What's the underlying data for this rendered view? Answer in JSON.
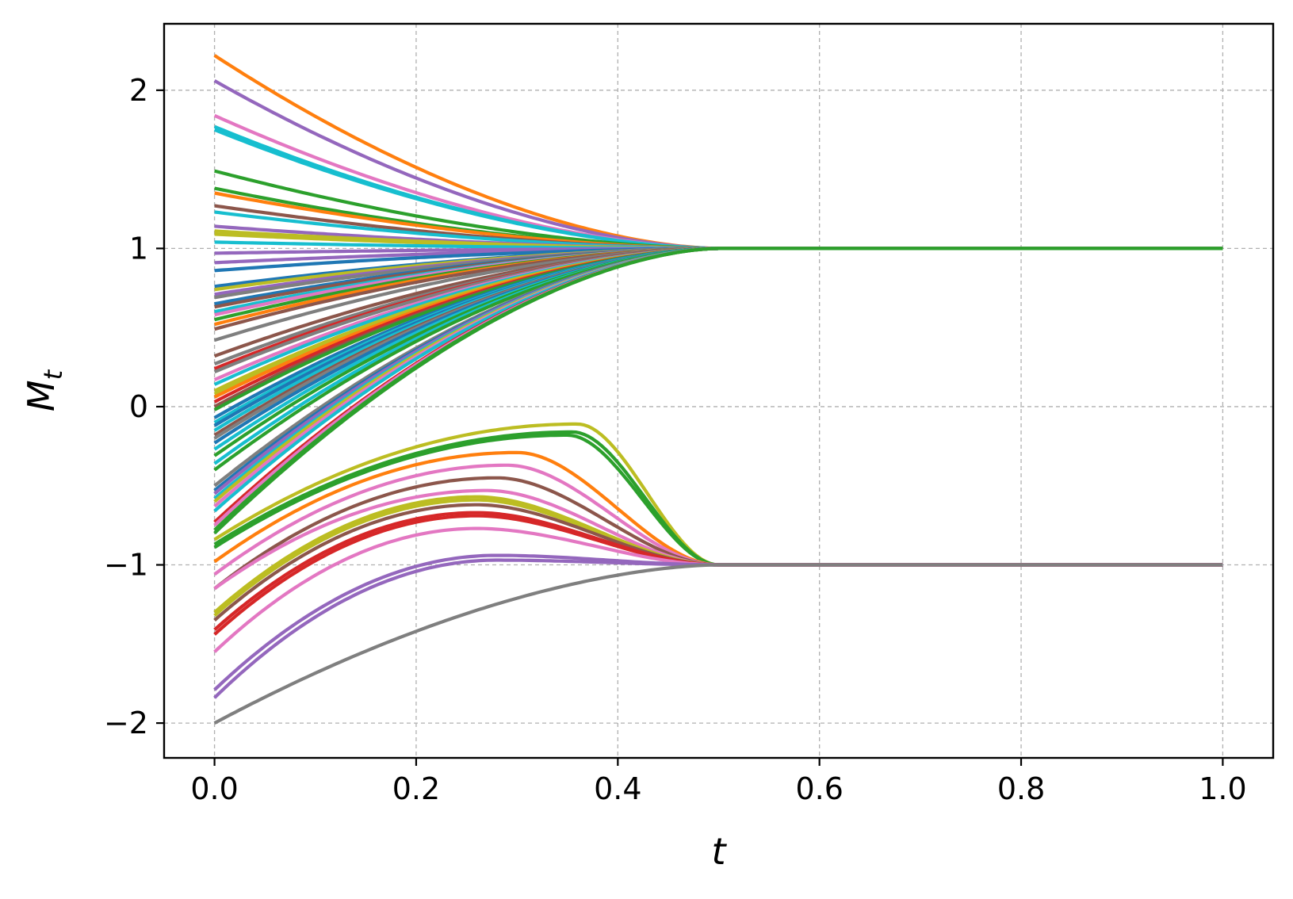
{
  "chart_data": {
    "type": "line",
    "xlabel": "t",
    "ylabel": "M",
    "ylabel_subscript": "t",
    "xlim": [
      -0.05,
      1.05
    ],
    "ylim": [
      -2.22,
      2.42
    ],
    "xticks": [
      0.0,
      0.2,
      0.4,
      0.6,
      0.8,
      1.0
    ],
    "xtick_labels": [
      "0.0",
      "0.2",
      "0.4",
      "0.6",
      "0.8",
      "1.0"
    ],
    "yticks": [
      -2,
      -1,
      0,
      1,
      2
    ],
    "ytick_labels": [
      "−2",
      "−1",
      "0",
      "1",
      "2"
    ],
    "grid": true,
    "grid_style": "dashed",
    "t_switch": 0.5,
    "colors": [
      "#1f77b4",
      "#ff7f0e",
      "#2ca02c",
      "#d62728",
      "#9467bd",
      "#8c564b",
      "#e377c2",
      "#7f7f7f",
      "#bcbd22",
      "#17becf"
    ],
    "series": [
      {
        "color": "#ff7f0e",
        "start": 2.22,
        "terminal": 1,
        "peak_t": null,
        "peak": null
      },
      {
        "color": "#9467bd",
        "start": 2.06,
        "terminal": 1,
        "peak_t": null,
        "peak": null
      },
      {
        "color": "#e377c2",
        "start": 1.84,
        "terminal": 1,
        "peak_t": null,
        "peak": null
      },
      {
        "color": "#17becf",
        "start": 1.77,
        "terminal": 1,
        "peak_t": null,
        "peak": null
      },
      {
        "color": "#17becf",
        "start": 1.75,
        "terminal": 1,
        "peak_t": null,
        "peak": null
      },
      {
        "color": "#2ca02c",
        "start": 1.49,
        "terminal": 1,
        "peak_t": null,
        "peak": null
      },
      {
        "color": "#2ca02c",
        "start": 1.38,
        "terminal": 1,
        "peak_t": null,
        "peak": null
      },
      {
        "color": "#ff7f0e",
        "start": 1.35,
        "terminal": 1,
        "peak_t": null,
        "peak": null
      },
      {
        "color": "#8c564b",
        "start": 1.27,
        "terminal": 1,
        "peak_t": null,
        "peak": null
      },
      {
        "color": "#17becf",
        "start": 1.23,
        "terminal": 1,
        "peak_t": null,
        "peak": null
      },
      {
        "color": "#9467bd",
        "start": 1.14,
        "terminal": 1,
        "peak_t": null,
        "peak": null
      },
      {
        "color": "#bcbd22",
        "start": 1.11,
        "terminal": 1,
        "peak_t": null,
        "peak": null
      },
      {
        "color": "#bcbd22",
        "start": 1.09,
        "terminal": 1,
        "peak_t": null,
        "peak": null
      },
      {
        "color": "#17becf",
        "start": 1.04,
        "terminal": 1,
        "peak_t": null,
        "peak": null
      },
      {
        "color": "#9467bd",
        "start": 0.97,
        "terminal": 1,
        "peak_t": null,
        "peak": null
      },
      {
        "color": "#9467bd",
        "start": 0.91,
        "terminal": 1,
        "peak_t": null,
        "peak": null
      },
      {
        "color": "#1f77b4",
        "start": 0.86,
        "terminal": 1,
        "peak_t": null,
        "peak": null
      },
      {
        "color": "#1f77b4",
        "start": 0.76,
        "terminal": 1,
        "peak_t": null,
        "peak": null
      },
      {
        "color": "#bcbd22",
        "start": 0.74,
        "terminal": 1,
        "peak_t": null,
        "peak": null
      },
      {
        "color": "#9467bd",
        "start": 0.71,
        "terminal": 1,
        "peak_t": null,
        "peak": null
      },
      {
        "color": "#7f7f7f",
        "start": 0.69,
        "terminal": 1,
        "peak_t": null,
        "peak": null
      },
      {
        "color": "#1f77b4",
        "start": 0.65,
        "terminal": 1,
        "peak_t": null,
        "peak": null
      },
      {
        "color": "#8c564b",
        "start": 0.63,
        "terminal": 1,
        "peak_t": null,
        "peak": null
      },
      {
        "color": "#17becf",
        "start": 0.6,
        "terminal": 1,
        "peak_t": null,
        "peak": null
      },
      {
        "color": "#e377c2",
        "start": 0.58,
        "terminal": 1,
        "peak_t": null,
        "peak": null
      },
      {
        "color": "#2ca02c",
        "start": 0.55,
        "terminal": 1,
        "peak_t": null,
        "peak": null
      },
      {
        "color": "#ff7f0e",
        "start": 0.52,
        "terminal": 1,
        "peak_t": null,
        "peak": null
      },
      {
        "color": "#8c564b",
        "start": 0.49,
        "terminal": 1,
        "peak_t": null,
        "peak": null
      },
      {
        "color": "#7f7f7f",
        "start": 0.42,
        "terminal": 1,
        "peak_t": null,
        "peak": null
      },
      {
        "color": "#8c564b",
        "start": 0.32,
        "terminal": 1,
        "peak_t": null,
        "peak": null
      },
      {
        "color": "#7f7f7f",
        "start": 0.27,
        "terminal": 1,
        "peak_t": null,
        "peak": null
      },
      {
        "color": "#d62728",
        "start": 0.24,
        "terminal": 1,
        "peak_t": null,
        "peak": null
      },
      {
        "color": "#7f7f7f",
        "start": 0.22,
        "terminal": 1,
        "peak_t": null,
        "peak": null
      },
      {
        "color": "#e377c2",
        "start": 0.17,
        "terminal": 1,
        "peak_t": null,
        "peak": null
      },
      {
        "color": "#17becf",
        "start": 0.14,
        "terminal": 1,
        "peak_t": null,
        "peak": null
      },
      {
        "color": "#bcbd22",
        "start": 0.1,
        "terminal": 1,
        "peak_t": null,
        "peak": null
      },
      {
        "color": "#bcbd22",
        "start": 0.08,
        "terminal": 1,
        "peak_t": null,
        "peak": null
      },
      {
        "color": "#ff7f0e",
        "start": 0.06,
        "terminal": 1,
        "peak_t": null,
        "peak": null
      },
      {
        "color": "#d62728",
        "start": 0.03,
        "terminal": 1,
        "peak_t": null,
        "peak": null
      },
      {
        "color": "#8c564b",
        "start": 0.0,
        "terminal": 1,
        "peak_t": null,
        "peak": null
      },
      {
        "color": "#2ca02c",
        "start": -0.02,
        "terminal": 1,
        "peak_t": null,
        "peak": null
      },
      {
        "color": "#1f77b4",
        "start": -0.07,
        "terminal": 1,
        "peak_t": null,
        "peak": null
      },
      {
        "color": "#17becf",
        "start": -0.1,
        "terminal": 1,
        "peak_t": null,
        "peak": null
      },
      {
        "color": "#1f77b4",
        "start": -0.12,
        "terminal": 1,
        "peak_t": null,
        "peak": null
      },
      {
        "color": "#17becf",
        "start": -0.15,
        "terminal": 1,
        "peak_t": null,
        "peak": null
      },
      {
        "color": "#8c564b",
        "start": -0.18,
        "terminal": 1,
        "peak_t": null,
        "peak": null
      },
      {
        "color": "#7f7f7f",
        "start": -0.2,
        "terminal": 1,
        "peak_t": null,
        "peak": null
      },
      {
        "color": "#1f77b4",
        "start": -0.23,
        "terminal": 1,
        "peak_t": null,
        "peak": null
      },
      {
        "color": "#17becf",
        "start": -0.27,
        "terminal": 1,
        "peak_t": null,
        "peak": null
      },
      {
        "color": "#2ca02c",
        "start": -0.31,
        "terminal": 1,
        "peak_t": null,
        "peak": null
      },
      {
        "color": "#17becf",
        "start": -0.36,
        "terminal": 1,
        "peak_t": null,
        "peak": null
      },
      {
        "color": "#2ca02c",
        "start": -0.4,
        "terminal": 1,
        "peak_t": null,
        "peak": null
      },
      {
        "color": "#7f7f7f",
        "start": -0.5,
        "terminal": 1,
        "peak_t": null,
        "peak": null
      },
      {
        "color": "#1f77b4",
        "start": -0.53,
        "terminal": 1,
        "peak_t": null,
        "peak": null
      },
      {
        "color": "#9467bd",
        "start": -0.55,
        "terminal": 1,
        "peak_t": null,
        "peak": null
      },
      {
        "color": "#17becf",
        "start": -0.58,
        "terminal": 1,
        "peak_t": null,
        "peak": null
      },
      {
        "color": "#bcbd22",
        "start": -0.6,
        "terminal": 1,
        "peak_t": null,
        "peak": null
      },
      {
        "color": "#e377c2",
        "start": -0.63,
        "terminal": 1,
        "peak_t": null,
        "peak": null
      },
      {
        "color": "#17becf",
        "start": -0.66,
        "terminal": 1,
        "peak_t": null,
        "peak": null
      },
      {
        "color": "#d62728",
        "start": -0.73,
        "terminal": 1,
        "peak_t": null,
        "peak": null
      },
      {
        "color": "#e377c2",
        "start": -0.75,
        "terminal": 1,
        "peak_t": null,
        "peak": null
      },
      {
        "color": "#2ca02c",
        "start": -0.78,
        "terminal": 1,
        "peak_t": null,
        "peak": null
      },
      {
        "color": "#2ca02c",
        "start": -0.8,
        "terminal": 1,
        "peak_t": null,
        "peak": null
      },
      {
        "color": "#bcbd22",
        "start": -0.84,
        "terminal": -1,
        "peak_t": 0.36,
        "peak": -0.11
      },
      {
        "color": "#2ca02c",
        "start": -0.87,
        "terminal": -1,
        "peak_t": 0.355,
        "peak": -0.16
      },
      {
        "color": "#2ca02c",
        "start": -0.89,
        "terminal": -1,
        "peak_t": 0.35,
        "peak": -0.18
      },
      {
        "color": "#ff7f0e",
        "start": -0.98,
        "terminal": -1,
        "peak_t": 0.3,
        "peak": -0.29
      },
      {
        "color": "#e377c2",
        "start": -1.06,
        "terminal": -1,
        "peak_t": 0.29,
        "peak": -0.37
      },
      {
        "color": "#8c564b",
        "start": -1.15,
        "terminal": -1,
        "peak_t": 0.28,
        "peak": -0.45
      },
      {
        "color": "#e377c2",
        "start": -1.15,
        "terminal": -1,
        "peak_t": 0.27,
        "peak": -0.53
      },
      {
        "color": "#bcbd22",
        "start": -1.3,
        "terminal": -1,
        "peak_t": 0.26,
        "peak": -0.57
      },
      {
        "color": "#bcbd22",
        "start": -1.32,
        "terminal": -1,
        "peak_t": 0.26,
        "peak": -0.59
      },
      {
        "color": "#8c564b",
        "start": -1.35,
        "terminal": -1,
        "peak_t": 0.26,
        "peak": -0.62
      },
      {
        "color": "#d62728",
        "start": -1.41,
        "terminal": -1,
        "peak_t": 0.26,
        "peak": -0.67
      },
      {
        "color": "#d62728",
        "start": -1.44,
        "terminal": -1,
        "peak_t": 0.26,
        "peak": -0.69
      },
      {
        "color": "#e377c2",
        "start": -1.55,
        "terminal": -1,
        "peak_t": 0.26,
        "peak": -0.77
      },
      {
        "color": "#9467bd",
        "start": -1.79,
        "terminal": -1,
        "peak_t": 0.28,
        "peak": -0.94
      },
      {
        "color": "#9467bd",
        "start": -1.84,
        "terminal": -1,
        "peak_t": 0.28,
        "peak": -0.97
      },
      {
        "color": "#7f7f7f",
        "start": -2.0,
        "terminal": -1,
        "peak_t": null,
        "peak": null
      }
    ]
  }
}
